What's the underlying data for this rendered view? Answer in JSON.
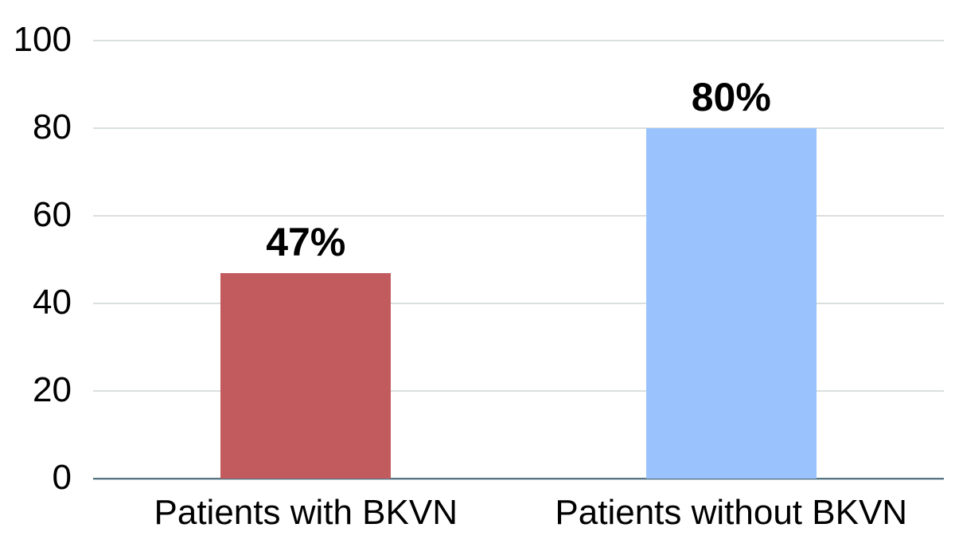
{
  "chart_data": {
    "type": "bar",
    "title": "",
    "xlabel": "",
    "ylabel": "",
    "categories": [
      "Patients with BKVN",
      "Patients without BKVN"
    ],
    "values": [
      47,
      80
    ],
    "value_labels": [
      "47%",
      "80%"
    ],
    "bar_colors": [
      "#C25B5D",
      "#9AC2FC"
    ],
    "ylim": [
      0,
      100
    ],
    "yticks": [
      0,
      20,
      40,
      60,
      80,
      100
    ],
    "ytick_labels": [
      "0",
      "20",
      "40",
      "60",
      "80",
      "100"
    ],
    "grid": "horizontal",
    "gridline_color": "#DADFE0",
    "axis_line_color": "#567585",
    "legend_position": "none",
    "background_color": "#FFFFFF",
    "label_color": "#000000"
  }
}
